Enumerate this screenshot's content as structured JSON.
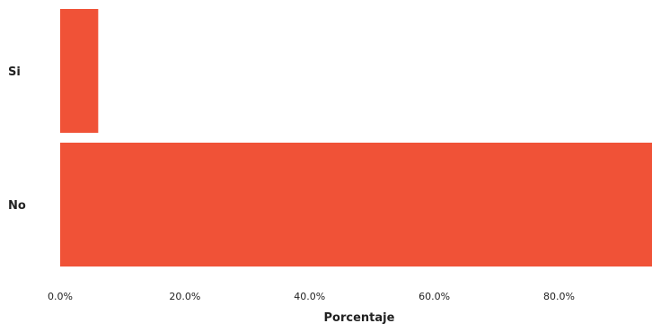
{
  "chart_data": {
    "type": "bar",
    "orientation": "horizontal",
    "categories": [
      "Si",
      "No"
    ],
    "values": [
      6.1,
      94.9
    ],
    "xlabel": "Porcentaje",
    "ylabel": "",
    "xlim": [
      0,
      94.9
    ],
    "xticks": [
      0,
      20,
      40,
      60,
      80
    ],
    "xtick_labels": [
      "0.0%",
      "20.0%",
      "40.0%",
      "60.0%",
      "80.0%"
    ],
    "grid": false,
    "bar_color": "#F05237"
  }
}
